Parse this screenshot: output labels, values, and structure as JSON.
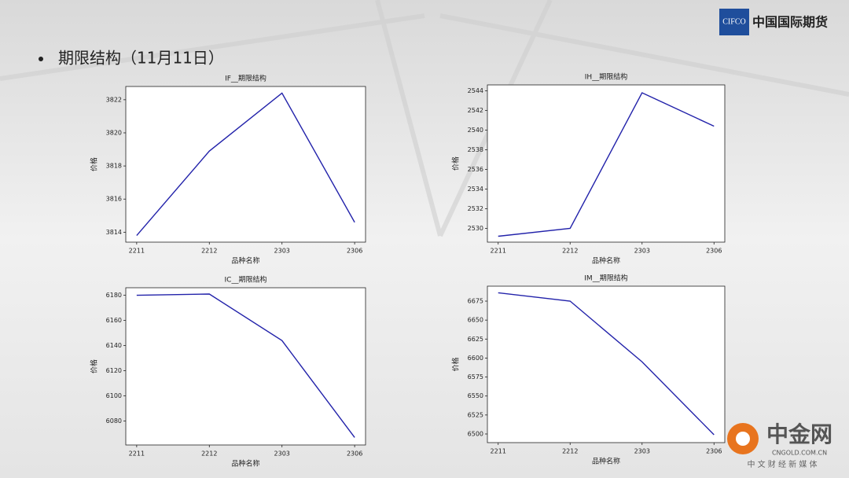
{
  "heading": "期限结构（11月11日）",
  "logo": {
    "abbr": "CIFCO",
    "name": "中国国际期货"
  },
  "watermark": {
    "name": "中金网",
    "domain": "CNGOLD.COM.CN",
    "tagline": "中 文 财 经 新 媒 体"
  },
  "chart_data": [
    {
      "type": "line",
      "title": "IF__期限结构",
      "xlabel": "品种名称",
      "ylabel": "价格",
      "categories": [
        "2211",
        "2212",
        "2303",
        "2306"
      ],
      "values": [
        3813.8,
        3818.9,
        3822.4,
        3814.6
      ],
      "color": "#2222aa",
      "ylim": [
        3813.4,
        3822.8
      ],
      "yticks": [
        3814,
        3816,
        3818,
        3820,
        3822
      ]
    },
    {
      "type": "line",
      "title": "IH__期限结构",
      "xlabel": "品种名称",
      "ylabel": "价格",
      "categories": [
        "2211",
        "2212",
        "2303",
        "2306"
      ],
      "values": [
        2529.2,
        2530.0,
        2543.8,
        2540.4
      ],
      "color": "#2222aa",
      "ylim": [
        2528.6,
        2544.6
      ],
      "yticks": [
        2530,
        2532,
        2534,
        2536,
        2538,
        2540,
        2542,
        2544
      ]
    },
    {
      "type": "line",
      "title": "IC__期限结构",
      "xlabel": "品种名称",
      "ylabel": "价格",
      "categories": [
        "2211",
        "2212",
        "2303",
        "2306"
      ],
      "values": [
        6180,
        6181,
        6144,
        6067
      ],
      "color": "#2222aa",
      "ylim": [
        6061,
        6186
      ],
      "yticks": [
        6080,
        6100,
        6120,
        6140,
        6160,
        6180
      ]
    },
    {
      "type": "line",
      "title": "IM__期限结构",
      "xlabel": "品种名称",
      "ylabel": "价格",
      "categories": [
        "2211",
        "2212",
        "2303",
        "2306"
      ],
      "values": [
        6686,
        6675,
        6595,
        6499
      ],
      "color": "#2222aa",
      "ylim": [
        6488.6,
        6694.7
      ],
      "yticks": [
        6500,
        6525,
        6550,
        6575,
        6600,
        6625,
        6650,
        6675
      ]
    }
  ]
}
